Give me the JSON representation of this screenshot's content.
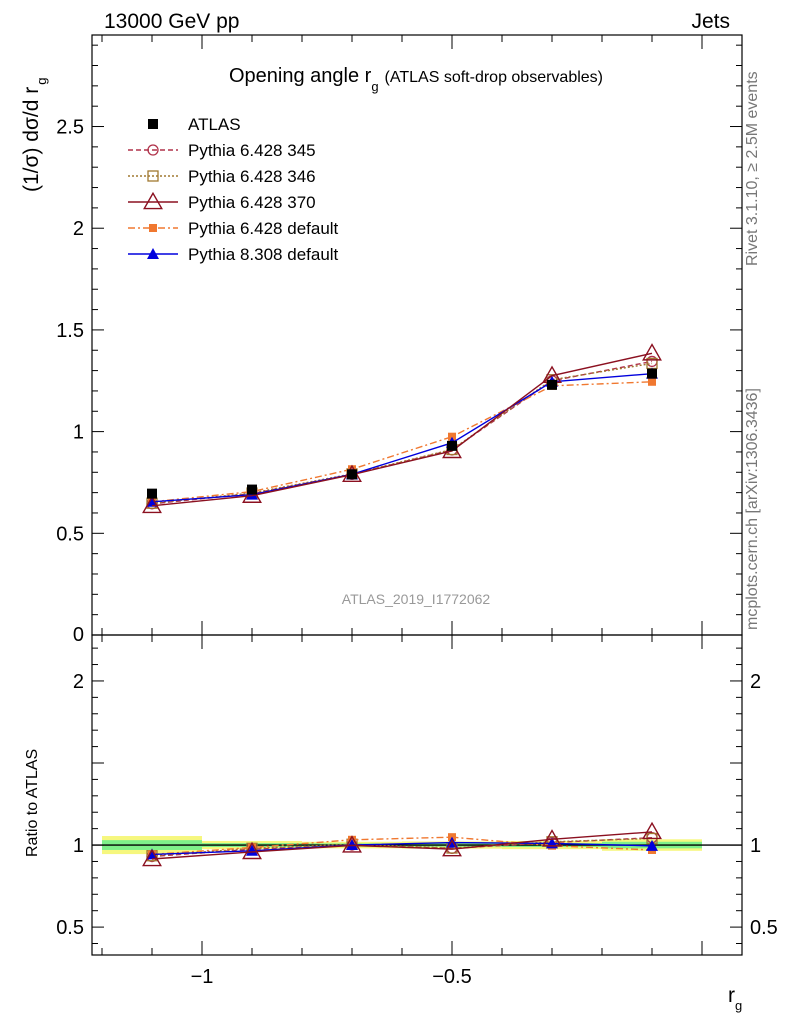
{
  "header": {
    "left": "13000 GeV pp",
    "right": "Jets"
  },
  "side_labels": {
    "rivet": "Rivet 3.1.10, ≥ 2.5M events",
    "mcplots": "mcplots.cern.ch [arXiv:1306.3436]"
  },
  "watermark": "ATLAS_2019_I1772062",
  "chart_data": [
    {
      "type": "line",
      "panel": "main",
      "title": "Opening angle r",
      "title_subscript": "g",
      "title_suffix": "(ATLAS soft-drop observables)",
      "ylabel": "(1/σ) dσ/d r",
      "ylabel_subscript": "g",
      "ylim": [
        0,
        2.95
      ],
      "xlim": [
        -1.22,
        0.08
      ],
      "y_ticks": [
        "0.5",
        "1",
        "1.5",
        "2",
        "2.5"
      ],
      "y_zero_label": "0",
      "x": [
        -1.1,
        -0.9,
        -0.7,
        -0.5,
        -0.3,
        -0.1
      ],
      "series": [
        {
          "name": "ATLAS",
          "values": [
            0.695,
            0.715,
            0.79,
            0.93,
            1.23,
            1.285
          ],
          "color": "#000000",
          "marker": "filled-square"
        },
        {
          "name": "Pythia 6.428 345",
          "values": [
            0.645,
            0.695,
            0.79,
            0.91,
            1.25,
            1.345
          ],
          "color": "#b0324a",
          "marker": "open-circle"
        },
        {
          "name": "Pythia 6.428 346",
          "values": [
            0.648,
            0.698,
            0.792,
            0.912,
            1.255,
            1.335
          ],
          "color": "#a07830",
          "marker": "open-square"
        },
        {
          "name": "Pythia 6.428 370",
          "values": [
            0.635,
            0.685,
            0.788,
            0.905,
            1.275,
            1.385
          ],
          "color": "#8b1020",
          "marker": "open-triangle"
        },
        {
          "name": "Pythia 6.428 default",
          "values": [
            0.655,
            0.705,
            0.815,
            0.975,
            1.225,
            1.245
          ],
          "color": "#f07830",
          "marker": "filled-square-small"
        },
        {
          "name": "Pythia 8.308 default",
          "values": [
            0.655,
            0.69,
            0.79,
            0.945,
            1.245,
            1.285
          ],
          "color": "#0000dd",
          "marker": "filled-triangle"
        }
      ]
    },
    {
      "type": "line",
      "panel": "ratio",
      "ylabel": "Ratio to ATLAS",
      "xlabel": "r",
      "xlabel_subscript": "g",
      "ylim": [
        0.33,
        2.28
      ],
      "y_ticks": [
        "0.5",
        "1",
        "2"
      ],
      "x_ticks": [
        "−1",
        "−0.5"
      ],
      "x_tick_values": [
        -1,
        -0.5
      ],
      "x": [
        -1.1,
        -0.9,
        -0.7,
        -0.5,
        -0.3,
        -0.1
      ],
      "band_edges": [
        -1.2,
        -1.0,
        -0.8,
        -0.6,
        -0.4,
        -0.2,
        0.0
      ],
      "stat_band": [
        0.03,
        0.012,
        0.01,
        0.01,
        0.012,
        0.02
      ],
      "syst_band": [
        0.055,
        0.025,
        0.02,
        0.022,
        0.025,
        0.035
      ],
      "series": [
        {
          "name": "Pythia 6.428 345",
          "values": [
            0.93,
            0.975,
            1.0,
            0.98,
            1.015,
            1.045
          ]
        },
        {
          "name": "Pythia 6.428 346",
          "values": [
            0.935,
            0.98,
            1.005,
            0.982,
            1.02,
            1.04
          ]
        },
        {
          "name": "Pythia 6.428 370",
          "values": [
            0.915,
            0.958,
            0.998,
            0.975,
            1.035,
            1.08
          ]
        },
        {
          "name": "Pythia 6.428 default",
          "values": [
            0.943,
            0.985,
            1.032,
            1.048,
            0.996,
            0.97
          ]
        },
        {
          "name": "Pythia 8.308 default",
          "values": [
            0.943,
            0.965,
            1.0,
            1.015,
            1.01,
            0.995
          ]
        }
      ]
    }
  ]
}
